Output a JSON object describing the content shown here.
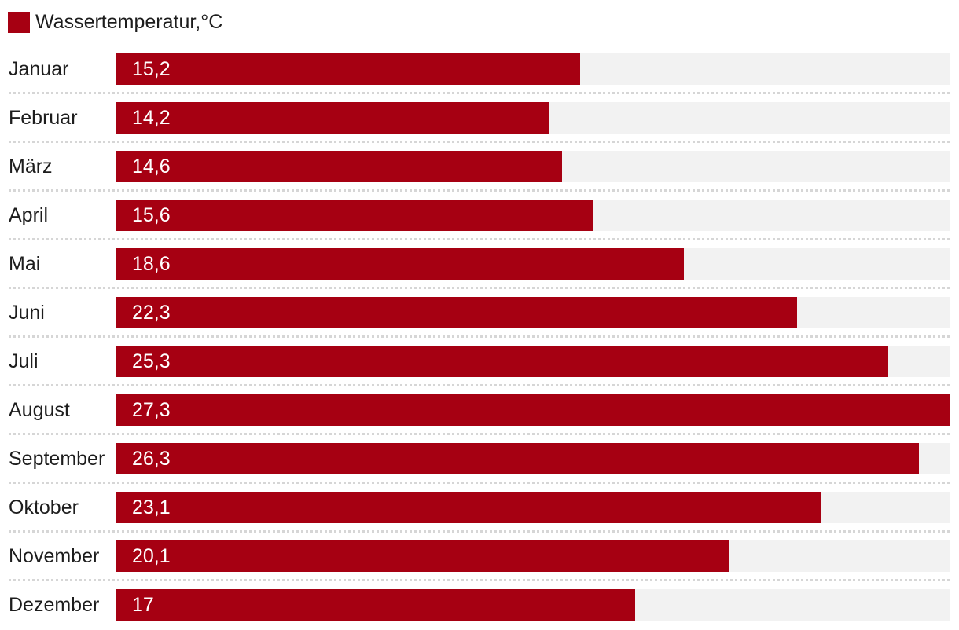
{
  "legend": {
    "label": "Wassertemperatur,°C",
    "swatch_color": "#a60012"
  },
  "chart_data": {
    "type": "bar",
    "orientation": "horizontal",
    "title": "Wassertemperatur,°C",
    "categories": [
      "Januar",
      "Februar",
      "März",
      "April",
      "Mai",
      "Juni",
      "Juli",
      "August",
      "September",
      "Oktober",
      "November",
      "Dezember"
    ],
    "values": [
      15.2,
      14.2,
      14.6,
      15.6,
      18.6,
      22.3,
      25.3,
      27.3,
      26.3,
      23.1,
      20.1,
      17
    ],
    "value_labels": [
      "15,2",
      "14,2",
      "14,6",
      "15,6",
      "18,6",
      "22,3",
      "25,3",
      "27,3",
      "26,3",
      "23,1",
      "20,1",
      "17"
    ],
    "unit": "°C",
    "xlim": [
      0,
      27.3
    ],
    "bar_color": "#a60012",
    "track_color": "#f2f2f2",
    "separator_color": "#d6d6d6",
    "label_color": "#1d1d1d",
    "value_text_color": "#ffffff",
    "grid": "dotted-row-separators",
    "legend_position": "top-left"
  }
}
